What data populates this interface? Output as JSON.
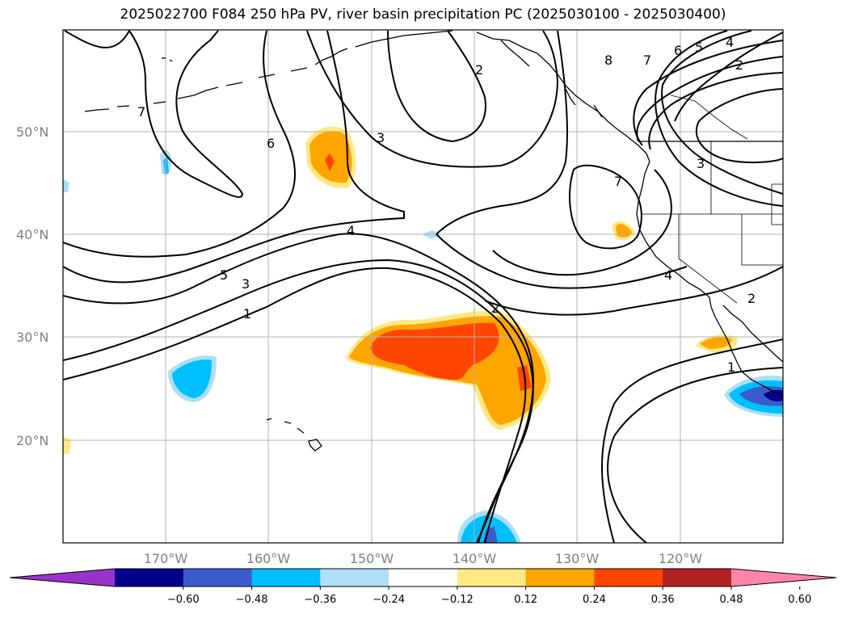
{
  "title": "2025022700 F084 250 hPa PV, river basin precipitation PC (2025030100 - 2025030400)",
  "map": {
    "projection": "equirectangular",
    "lon_range": [
      -180,
      -110
    ],
    "lat_range": [
      10,
      60
    ],
    "lat_ticks": [
      "50°N",
      "40°N",
      "30°N",
      "20°N"
    ],
    "lon_ticks": [
      "170°W",
      "160°W",
      "150°W",
      "140°W",
      "130°W",
      "120°W"
    ],
    "grid": true,
    "pv_contour_labels": [
      "7",
      "6",
      "5",
      "4",
      "3",
      "2",
      "1",
      "8"
    ]
  },
  "colorbar": {
    "ticks": [
      "−0.60",
      "−0.48",
      "−0.36",
      "−0.24",
      "−0.12",
      "0.12",
      "0.24",
      "0.36",
      "0.48",
      "0.60"
    ],
    "colors": [
      "#9932CC",
      "#00008B",
      "#3A5BCC",
      "#00BFFF",
      "#ADDFF8",
      "#FFFFFF",
      "#FFE985",
      "#FFA500",
      "#FF4500",
      "#B22222",
      "#FF85A8"
    ],
    "extend": "both"
  }
}
